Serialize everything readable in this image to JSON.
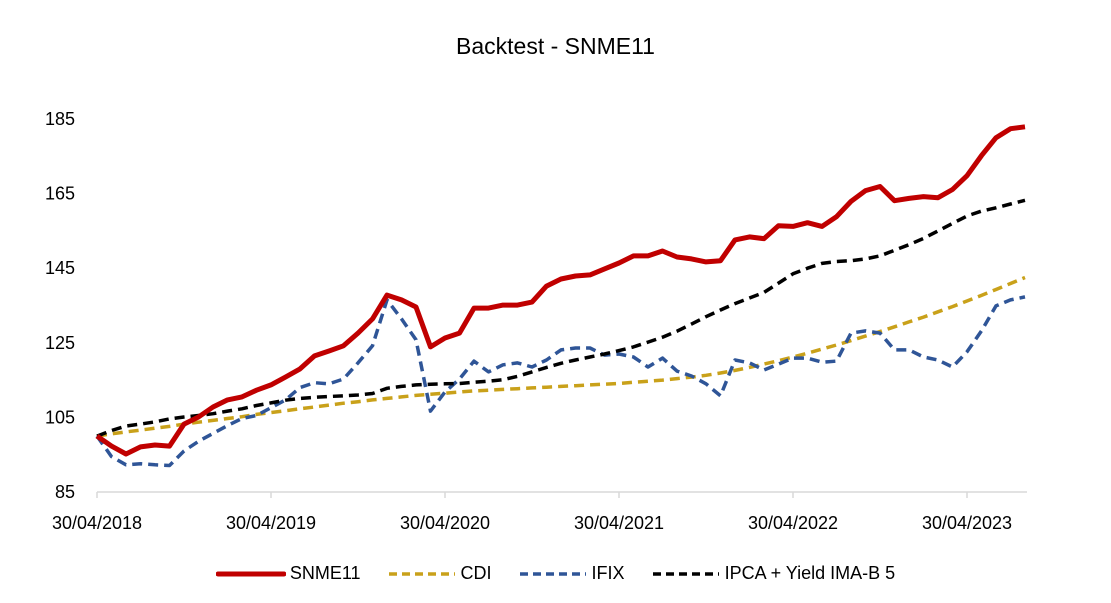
{
  "chart_data": {
    "type": "line",
    "title": "Backtest - SNME11",
    "xlabel": "",
    "ylabel": "",
    "ylim": [
      85,
      185
    ],
    "yticks": [
      "85",
      "105",
      "125",
      "145",
      "165",
      "185"
    ],
    "ytick_values": [
      85,
      105,
      125,
      145,
      165,
      185
    ],
    "xticks": [
      "30/04/2018",
      "30/04/2019",
      "30/04/2020",
      "30/04/2021",
      "30/04/2022",
      "30/04/2023"
    ],
    "xtick_indices": [
      0,
      12,
      24,
      36,
      48,
      60
    ],
    "x_start": "30/04/2018",
    "frequency": "monthly",
    "n_points": 65,
    "grid": false,
    "legend_position": "bottom",
    "series": [
      {
        "name": "SNME11",
        "color": "#C00000",
        "style": "solid",
        "values": [
          100,
          97.3,
          95.2,
          97.1,
          97.6,
          97.3,
          103.2,
          105.1,
          107.8,
          109.7,
          110.5,
          112.3,
          113.7,
          115.8,
          118.0,
          121.5,
          122.8,
          124.2,
          127.6,
          131.4,
          137.8,
          136.5,
          134.6,
          123.9,
          126.3,
          127.6,
          134.3,
          134.3,
          135.1,
          135.1,
          135.9,
          140.2,
          142.1,
          142.9,
          143.2,
          144.8,
          146.4,
          148.3,
          148.3,
          149.6,
          148.0,
          147.5,
          146.7,
          147.0,
          152.6,
          153.4,
          152.9,
          156.4,
          156.2,
          157.2,
          156.2,
          158.8,
          162.9,
          165.8,
          166.9,
          163.1,
          163.7,
          164.2,
          163.9,
          166.1,
          169.8,
          175.2,
          180.0,
          182.4,
          182.9
        ]
      },
      {
        "name": "CDI",
        "color": "#C9A11A",
        "style": "dashed",
        "values": [
          100,
          100.6,
          101.1,
          101.6,
          102.1,
          102.6,
          103.2,
          103.7,
          104.2,
          104.7,
          105.2,
          105.8,
          106.3,
          106.8,
          107.3,
          107.8,
          108.3,
          108.8,
          109.2,
          109.7,
          110.1,
          110.5,
          110.9,
          111.2,
          111.5,
          111.8,
          112.1,
          112.3,
          112.5,
          112.7,
          112.9,
          113.1,
          113.3,
          113.5,
          113.7,
          113.9,
          114.1,
          114.4,
          114.7,
          115.0,
          115.4,
          115.8,
          116.3,
          116.9,
          117.6,
          118.4,
          119.3,
          120.2,
          121.2,
          122.2,
          123.3,
          124.4,
          125.6,
          126.8,
          128.0,
          129.3,
          130.6,
          131.9,
          133.3,
          134.7,
          136.2,
          137.7,
          139.3,
          140.9,
          142.5
        ]
      },
      {
        "name": "IFIX",
        "color": "#2F5597",
        "style": "dashed",
        "values": [
          100,
          94.5,
          92.3,
          92.6,
          92.3,
          92.1,
          96.0,
          98.6,
          100.7,
          102.8,
          104.7,
          105.5,
          107.6,
          109.7,
          113.0,
          114.3,
          114.0,
          115.3,
          119.6,
          124.2,
          136.5,
          131.4,
          125.8,
          106.7,
          111.8,
          115.3,
          120.1,
          117.2,
          119.1,
          119.6,
          118.5,
          120.4,
          123.1,
          123.6,
          123.6,
          121.7,
          122.0,
          121.2,
          118.5,
          120.9,
          117.4,
          116.1,
          114.0,
          110.8,
          120.4,
          119.6,
          117.7,
          119.3,
          120.9,
          120.9,
          119.8,
          120.1,
          127.6,
          128.2,
          127.6,
          123.1,
          123.1,
          121.2,
          120.4,
          118.5,
          122.6,
          128.2,
          134.9,
          136.5,
          137.3
        ]
      },
      {
        "name": "IPCA + Yield IMA-B 5",
        "color": "#000000",
        "style": "dashed",
        "values": [
          100,
          101.5,
          102.7,
          103.2,
          103.8,
          104.6,
          105.1,
          105.5,
          106.0,
          106.7,
          107.3,
          108.2,
          108.9,
          109.6,
          110.1,
          110.4,
          110.6,
          110.8,
          111.0,
          111.4,
          112.8,
          113.3,
          113.7,
          113.9,
          114.0,
          114.1,
          114.4,
          114.7,
          115.1,
          116.0,
          117.2,
          118.4,
          119.5,
          120.4,
          121.2,
          122.0,
          122.9,
          123.9,
          125.2,
          126.5,
          128.1,
          130.0,
          132.0,
          133.8,
          135.5,
          137.0,
          138.5,
          141.0,
          143.5,
          145.0,
          146.3,
          146.8,
          147.0,
          147.5,
          148.3,
          149.8,
          151.3,
          153.0,
          155.0,
          157.0,
          159.0,
          160.3,
          161.2,
          162.2,
          163.2
        ]
      }
    ]
  },
  "legend": [
    {
      "label": "SNME11"
    },
    {
      "label": "CDI"
    },
    {
      "label": "IFIX"
    },
    {
      "label": "IPCA + Yield IMA-B 5"
    }
  ]
}
